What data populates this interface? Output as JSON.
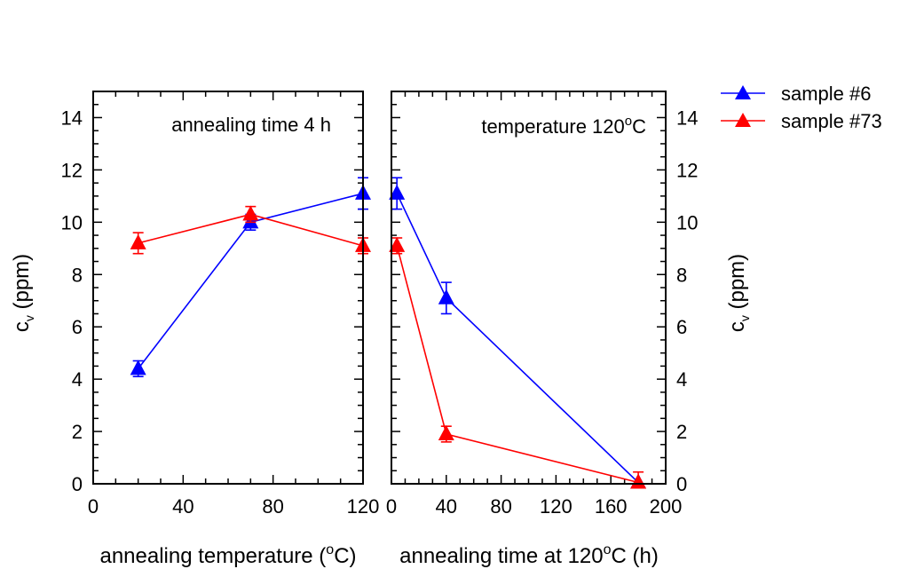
{
  "chart_data": [
    {
      "type": "line",
      "panel": "left",
      "annotation": "annealing time 4 h",
      "xlabel": "annealing temperature (",
      "xlabel_unit": "o",
      "xlabel_tail": "C)",
      "ylabel": "c",
      "ylabel_sub": "v",
      "ylabel_tail": " (ppm)",
      "xlim": [
        0,
        120
      ],
      "ylim": [
        0,
        15
      ],
      "x_ticks": [
        0,
        40,
        80,
        120
      ],
      "x_tick_labels": [
        "0",
        "40",
        "80",
        "120"
      ],
      "y_ticks": [
        0,
        2,
        4,
        6,
        8,
        10,
        12,
        14
      ],
      "y_tick_labels": [
        "0",
        "2",
        "4",
        "6",
        "8",
        "10",
        "12",
        "14"
      ],
      "series": [
        {
          "name": "sample #6",
          "color": "#0000ff",
          "x": [
            20,
            70,
            120
          ],
          "y": [
            4.4,
            10.0,
            11.1
          ],
          "err": [
            0.3,
            0.3,
            0.6
          ]
        },
        {
          "name": "sample #73",
          "color": "#ff0000",
          "x": [
            20,
            70,
            120
          ],
          "y": [
            9.2,
            10.3,
            9.1
          ],
          "err": [
            0.4,
            0.3,
            0.3
          ]
        }
      ]
    },
    {
      "type": "line",
      "panel": "right",
      "annotation": "temperature 120",
      "annotation_sup": "o",
      "annotation_tail": "C",
      "xlabel": "annealing time at 120",
      "xlabel_unit": "o",
      "xlabel_tail": "C (h)",
      "ylabel": "c",
      "ylabel_sub": "v",
      "ylabel_tail": " (ppm)",
      "xlim": [
        0,
        200
      ],
      "ylim": [
        0,
        15
      ],
      "x_ticks": [
        0,
        40,
        80,
        120,
        160,
        200
      ],
      "x_tick_labels": [
        "0",
        "40",
        "80",
        "120",
        "160",
        "200"
      ],
      "y_ticks": [
        0,
        2,
        4,
        6,
        8,
        10,
        12,
        14
      ],
      "y_tick_labels": [
        "0",
        "2",
        "4",
        "6",
        "8",
        "10",
        "12",
        "14"
      ],
      "series": [
        {
          "name": "sample #6",
          "color": "#0000ff",
          "x": [
            4,
            40,
            180
          ],
          "y": [
            11.1,
            7.1,
            0.05
          ],
          "err": [
            0.6,
            0.6,
            0.0
          ]
        },
        {
          "name": "sample #73",
          "color": "#ff0000",
          "x": [
            4,
            40,
            180
          ],
          "y": [
            9.1,
            1.9,
            0.05
          ],
          "err": [
            0.3,
            0.3,
            0.4
          ]
        }
      ]
    }
  ],
  "legend": [
    {
      "label": "sample #6",
      "color": "#0000ff"
    },
    {
      "label": "sample #73",
      "color": "#ff0000"
    }
  ]
}
